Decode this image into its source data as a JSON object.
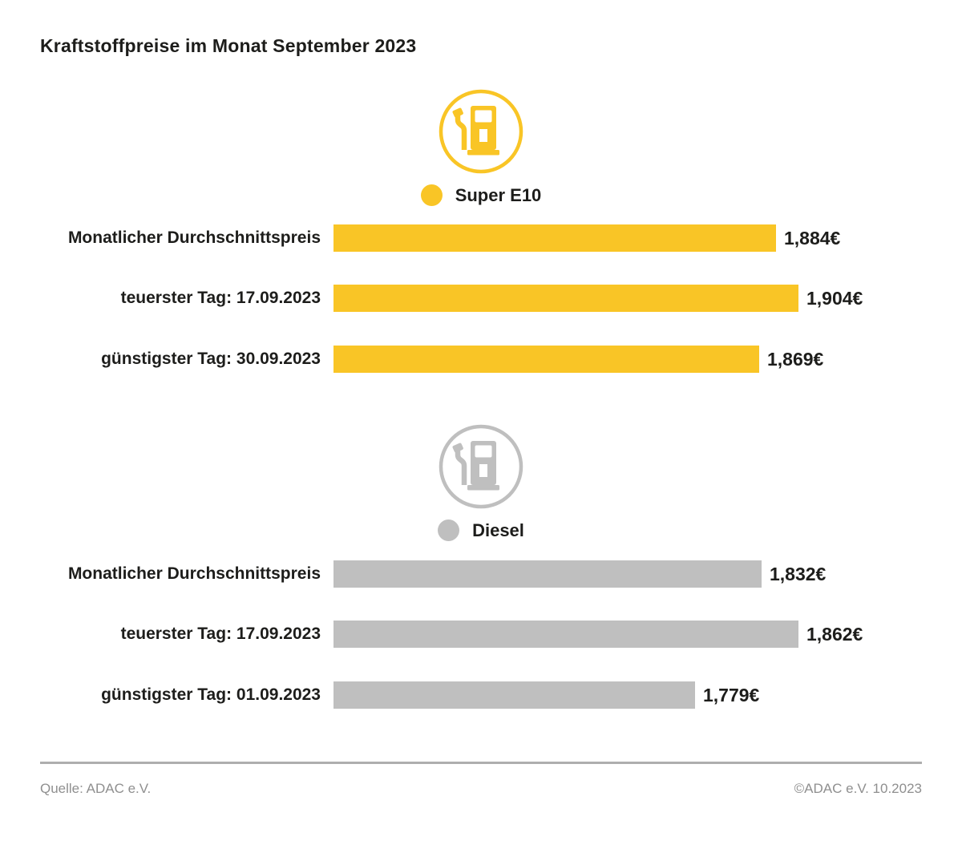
{
  "title": "Kraftstoffpreise im Monat September 2023",
  "footer": {
    "source": "Quelle: ADAC e.V.",
    "copyright": "©ADAC e.V. 10.2023"
  },
  "chart_data": [
    {
      "type": "bar",
      "orientation": "horizontal",
      "series_name": "Super E10",
      "legend_label": "Super E10",
      "icon": "fuel-pump-icon",
      "color": "#F9C526",
      "categories": [
        "Monatlicher Durchschnittspreis",
        "teuerster Tag: 17.09.2023",
        "günstigster Tag: 30.09.2023"
      ],
      "values": [
        1.884,
        1.904,
        1.869
      ],
      "value_labels": [
        "1,884€",
        "1,904€",
        "1,869€"
      ],
      "unit": "€"
    },
    {
      "type": "bar",
      "orientation": "horizontal",
      "series_name": "Diesel",
      "legend_label": "Diesel",
      "icon": "fuel-pump-icon",
      "color": "#BFBFBF",
      "categories": [
        "Monatlicher Durchschnittspreis",
        "teuerster Tag: 17.09.2023",
        "günstigster Tag: 01.09.2023"
      ],
      "values": [
        1.832,
        1.862,
        1.779
      ],
      "value_labels": [
        "1,832€",
        "1,862€",
        "1,779€"
      ],
      "unit": "€"
    }
  ]
}
